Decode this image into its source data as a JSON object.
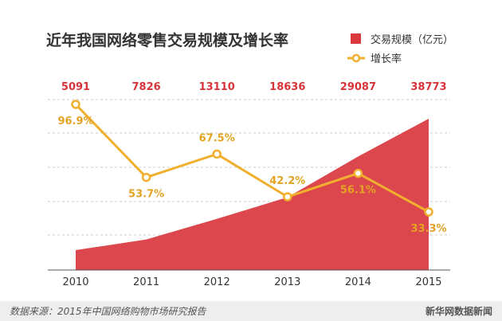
{
  "colors": {
    "area": "#d9393f",
    "line": "#f0b02e",
    "value_labels": "#d7343a",
    "pct_labels": "#e3a323",
    "grid": "#cccccc",
    "text": "#333333",
    "footer_bg": "#eeeeee",
    "footer_text": "#555555"
  },
  "chart_data": {
    "type": "area+line",
    "title": "近年我国网络零售交易规模及增长率",
    "categories": [
      "2010",
      "2011",
      "2012",
      "2013",
      "2014",
      "2015"
    ],
    "series": [
      {
        "name": "交易规模（亿元）",
        "type": "area",
        "values": [
          5091,
          7826,
          13110,
          18636,
          29087,
          38773
        ]
      },
      {
        "name": "增长率",
        "type": "line",
        "values": [
          96.9,
          53.7,
          67.5,
          42.2,
          56.1,
          33.3
        ],
        "labels": [
          "96.9%",
          "53.7%",
          "67.5%",
          "42.2%",
          "56.1%",
          "33.3%"
        ]
      }
    ],
    "legend_position": "top-right",
    "grid": "horizontal dashed"
  },
  "footer": {
    "source": "数据来源：2015年中国网络购物市场研究报告",
    "brand": "新华网数据新闻"
  }
}
